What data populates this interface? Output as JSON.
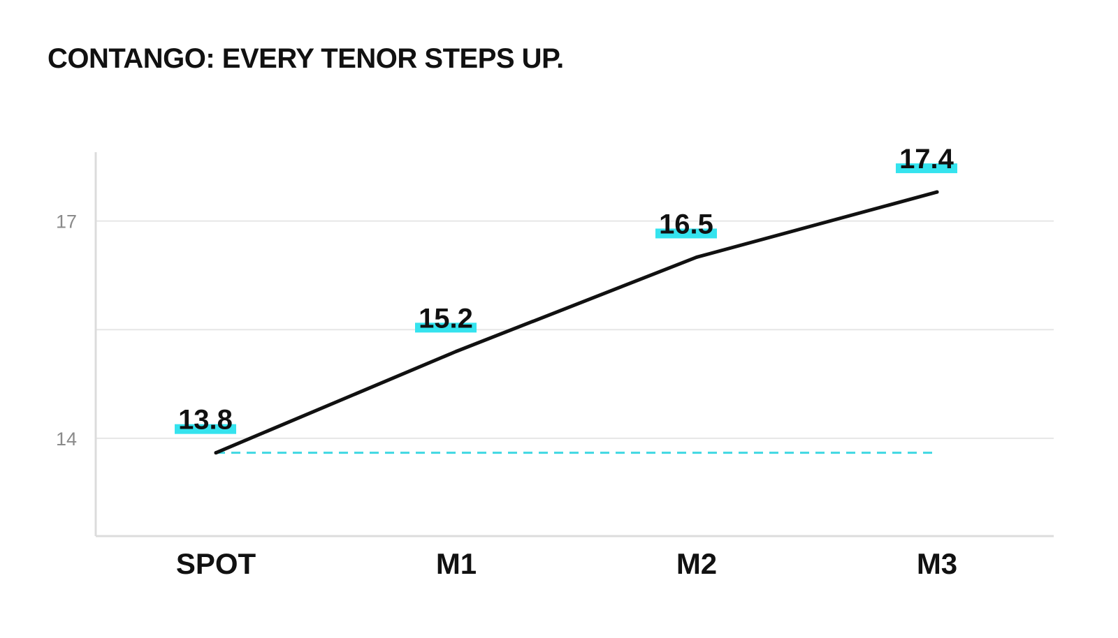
{
  "chart_data": {
    "type": "line",
    "title": "CONTANGO: EVERY TENOR STEPS UP.",
    "xlabel": "",
    "ylabel": "",
    "categories": [
      "SPOT",
      "M1",
      "M2",
      "M3"
    ],
    "series": [
      {
        "values": [
          13.8,
          15.2,
          16.5,
          17.4
        ]
      }
    ],
    "reference_line": {
      "value": 13.8,
      "style": "dashed"
    },
    "ylim": [
      12.65,
      17.95
    ],
    "yticks": [
      14,
      17
    ],
    "grid": true,
    "colors": {
      "line": "#111111",
      "reference": "#3fd8e2",
      "label_highlight": "#35e3ee",
      "grid": "#e6e6e6",
      "axis": "#dcdcdc"
    }
  }
}
